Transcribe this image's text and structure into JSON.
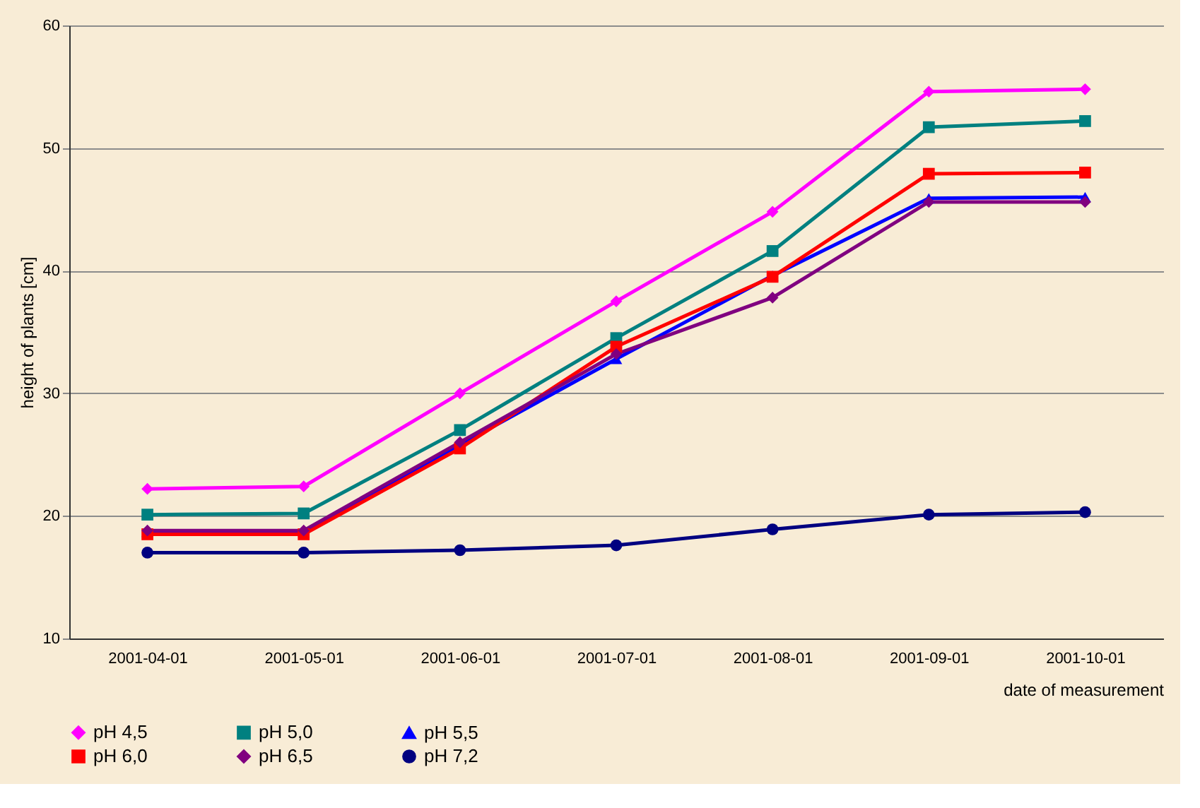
{
  "chart_data": {
    "type": "line",
    "xlabel": "date of measurement",
    "ylabel": "height of plants [cm]",
    "categories": [
      "2001-04-01",
      "2001-05-01",
      "2001-06-01",
      "2001-07-01",
      "2001-08-01",
      "2001-09-01",
      "2001-10-01"
    ],
    "series": [
      {
        "name": "pH 4,5",
        "color": "#ff00ff",
        "marker": "diamond",
        "values": [
          22.2,
          22.4,
          30.0,
          37.5,
          44.8,
          54.6,
          54.8
        ]
      },
      {
        "name": "pH 5,0",
        "color": "#008080",
        "marker": "square",
        "values": [
          20.1,
          20.2,
          27.0,
          34.5,
          41.6,
          51.7,
          52.2
        ]
      },
      {
        "name": "pH 5,5",
        "color": "#0000ff",
        "marker": "triangle",
        "values": [
          18.7,
          18.7,
          25.8,
          32.8,
          39.6,
          45.9,
          46.0
        ]
      },
      {
        "name": "pH 6,0",
        "color": "#ff0000",
        "marker": "square",
        "values": [
          18.5,
          18.5,
          25.5,
          33.8,
          39.5,
          47.9,
          48.0
        ]
      },
      {
        "name": "pH 6,5",
        "color": "#800080",
        "marker": "diamond",
        "values": [
          18.8,
          18.8,
          26.0,
          33.2,
          37.8,
          45.6,
          45.6
        ]
      },
      {
        "name": "pH 7,2",
        "color": "#000080",
        "marker": "circle",
        "values": [
          17.0,
          17.0,
          17.2,
          17.6,
          18.9,
          20.1,
          20.3
        ]
      }
    ],
    "ylim": [
      10,
      60
    ],
    "yticks": [
      10,
      20,
      30,
      40,
      50,
      60
    ],
    "grid": "y",
    "legend": "bottom",
    "line_style": "solid"
  }
}
